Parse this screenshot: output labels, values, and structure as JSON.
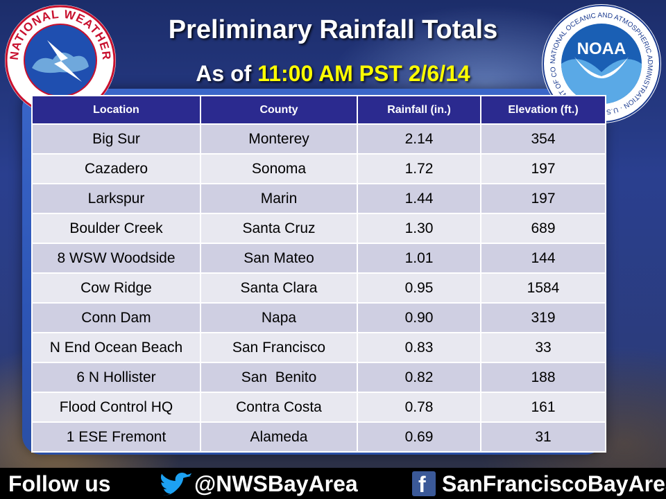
{
  "header": {
    "title": "Preliminary Rainfall Totals",
    "subtitle_prefix": "As of",
    "subtitle_time": "11:00 AM PST 2/6/14"
  },
  "logos": {
    "nws_text": "NATIONAL WEATHER SERVICE",
    "noaa_ring_text": "NATIONAL OCEANIC AND ATMOSPHERIC ADMINISTRATION · U.S. DEPARTMENT OF COMMERCE",
    "noaa_center": "NOAA"
  },
  "table": {
    "headers": [
      "Location",
      "County",
      "Rainfall (in.)",
      "Elevation (ft.)"
    ],
    "rows": [
      [
        "Big Sur",
        "Monterey",
        "2.14",
        "354"
      ],
      [
        "Cazadero",
        "Sonoma",
        "1.72",
        "197"
      ],
      [
        "Larkspur",
        "Marin",
        "1.44",
        "197"
      ],
      [
        "Boulder Creek",
        "Santa Cruz",
        "1.30",
        "689"
      ],
      [
        "8 WSW Woodside",
        "San Mateo",
        "1.01",
        "144"
      ],
      [
        "Cow Ridge",
        "Santa Clara",
        "0.95",
        "1584"
      ],
      [
        "Conn Dam",
        "Napa",
        "0.90",
        "319"
      ],
      [
        "N End Ocean Beach",
        "San Francisco",
        "0.83",
        "33"
      ],
      [
        "6 N Hollister",
        "San  Benito",
        "0.82",
        "188"
      ],
      [
        "Flood Control HQ",
        "Contra Costa",
        "0.78",
        "161"
      ],
      [
        "1 ESE Fremont",
        "Alameda",
        "0.69",
        "31"
      ]
    ]
  },
  "footer": {
    "follow": "Follow us",
    "twitter": "@NWSBayArea",
    "facebook": "SanFranciscoBayArea"
  },
  "colors": {
    "header_bg": "#2b2a8f",
    "row_odd": "#cfcfe2",
    "row_even": "#e8e8f0",
    "highlight": "#ffff00"
  },
  "icons": [
    "nws-logo",
    "noaa-logo",
    "twitter-bird-icon",
    "facebook-icon"
  ]
}
